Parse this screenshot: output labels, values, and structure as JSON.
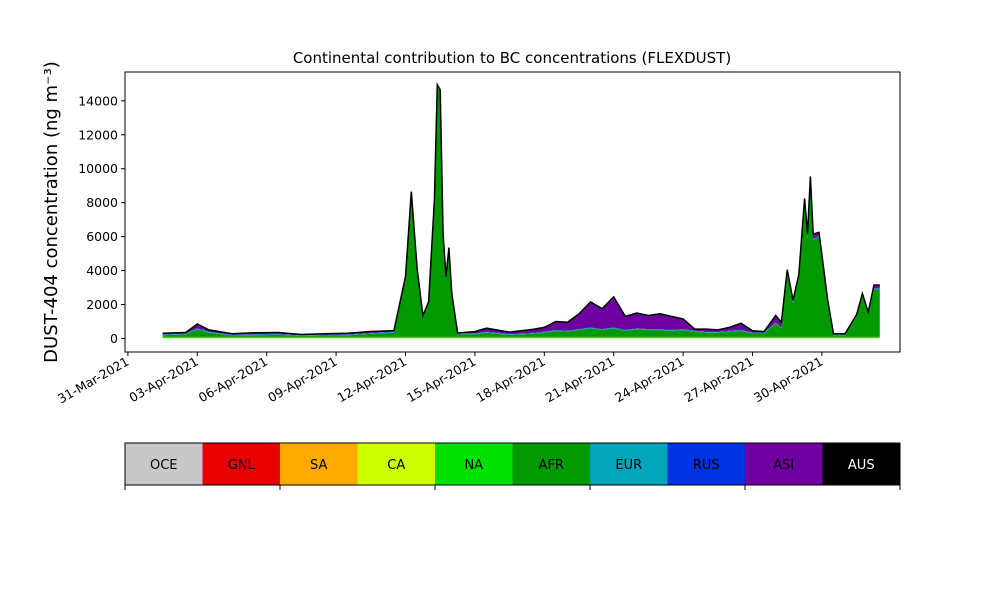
{
  "chart_data": {
    "type": "area",
    "title": "Continental contribution to BC concentrations (FLEXDUST)",
    "ylabel": "DUST-404 concentration (ng m⁻³)",
    "xlabel": "",
    "ylim": [
      -800,
      15700
    ],
    "xlim": [
      "2021-03-30T21:00",
      "2021-05-03T09:00"
    ],
    "yticks": [
      0,
      2000,
      4000,
      6000,
      8000,
      10000,
      12000,
      14000
    ],
    "ytick_labels": [
      "0",
      "2000",
      "4000",
      "6000",
      "8000",
      "10000",
      "12000",
      "14000"
    ],
    "xticks": [
      "2021-03-31",
      "2021-04-03",
      "2021-04-06",
      "2021-04-09",
      "2021-04-12",
      "2021-04-15",
      "2021-04-18",
      "2021-04-21",
      "2021-04-24",
      "2021-04-27",
      "2021-04-30"
    ],
    "xtick_labels": [
      "31-Mar-2021",
      "03-Apr-2021",
      "06-Apr-2021",
      "09-Apr-2021",
      "12-Apr-2021",
      "15-Apr-2021",
      "18-Apr-2021",
      "21-Apr-2021",
      "24-Apr-2021",
      "27-Apr-2021",
      "30-Apr-2021"
    ],
    "grid": false,
    "legend": {
      "placement": "bottom colorbar",
      "entries": [
        {
          "name": "OCE",
          "color": "#c8c8c8",
          "text_color": "#000000"
        },
        {
          "name": "GNL",
          "color": "#e60000",
          "text_color": "#000000"
        },
        {
          "name": "SA",
          "color": "#ffaa00",
          "text_color": "#000000"
        },
        {
          "name": "CA",
          "color": "#ccff00",
          "text_color": "#000000"
        },
        {
          "name": "NA",
          "color": "#00e100",
          "text_color": "#000000"
        },
        {
          "name": "AFR",
          "color": "#009a00",
          "text_color": "#000000"
        },
        {
          "name": "EUR",
          "color": "#00a5b9",
          "text_color": "#000000"
        },
        {
          "name": "RUS",
          "color": "#0032e1",
          "text_color": "#000000"
        },
        {
          "name": "ASI",
          "color": "#6e00a0",
          "text_color": "#000000"
        },
        {
          "name": "AUS",
          "color": "#000000",
          "text_color": "#ffffff"
        }
      ]
    },
    "series": [
      {
        "name": "CA",
        "color": "#ccff00",
        "points": [
          [
            "2021-04-01T12:00",
            30
          ],
          [
            "2021-04-05T00:00",
            30
          ],
          [
            "2021-04-10T00:00",
            30
          ],
          [
            "2021-04-15T00:00",
            30
          ],
          [
            "2021-04-20T00:00",
            30
          ],
          [
            "2021-04-25T00:00",
            30
          ],
          [
            "2021-04-28T00:00",
            30
          ],
          [
            "2021-05-02T12:00",
            30
          ]
        ]
      },
      {
        "name": "NA",
        "color": "#00e100",
        "points": [
          [
            "2021-04-01T12:00",
            60
          ],
          [
            "2021-04-05T00:00",
            60
          ],
          [
            "2021-04-10T00:00",
            60
          ],
          [
            "2021-04-15T00:00",
            60
          ],
          [
            "2021-04-20T00:00",
            60
          ],
          [
            "2021-04-25T00:00",
            60
          ],
          [
            "2021-04-28T00:00",
            60
          ],
          [
            "2021-05-02T12:00",
            60
          ]
        ]
      },
      {
        "name": "AFR",
        "color": "#009a00",
        "points": [
          [
            "2021-04-01T12:00",
            100
          ],
          [
            "2021-04-02T12:00",
            150
          ],
          [
            "2021-04-03T00:00",
            450
          ],
          [
            "2021-04-03T12:00",
            250
          ],
          [
            "2021-04-04T12:00",
            80
          ],
          [
            "2021-04-05T12:00",
            100
          ],
          [
            "2021-04-06T12:00",
            120
          ],
          [
            "2021-04-07T12:00",
            60
          ],
          [
            "2021-04-08T12:00",
            80
          ],
          [
            "2021-04-09T12:00",
            90
          ],
          [
            "2021-04-10T12:00",
            180
          ],
          [
            "2021-04-11T12:00",
            250
          ],
          [
            "2021-04-12T00:00",
            3500
          ],
          [
            "2021-04-12T06:00",
            8500
          ],
          [
            "2021-04-12T12:00",
            4000
          ],
          [
            "2021-04-12T18:00",
            1200
          ],
          [
            "2021-04-13T00:00",
            2000
          ],
          [
            "2021-04-13T06:00",
            8000
          ],
          [
            "2021-04-13T09:00",
            14800
          ],
          [
            "2021-04-13T12:00",
            14500
          ],
          [
            "2021-04-13T15:00",
            6000
          ],
          [
            "2021-04-13T18:00",
            3500
          ],
          [
            "2021-04-13T21:00",
            5200
          ],
          [
            "2021-04-14T00:00",
            2500
          ],
          [
            "2021-04-14T06:00",
            150
          ],
          [
            "2021-04-15T00:00",
            150
          ],
          [
            "2021-04-15T12:00",
            250
          ],
          [
            "2021-04-16T12:00",
            120
          ],
          [
            "2021-04-17T12:00",
            180
          ],
          [
            "2021-04-18T00:00",
            250
          ],
          [
            "2021-04-18T12:00",
            350
          ],
          [
            "2021-04-19T00:00",
            300
          ],
          [
            "2021-04-19T12:00",
            400
          ],
          [
            "2021-04-20T00:00",
            500
          ],
          [
            "2021-04-20T12:00",
            400
          ],
          [
            "2021-04-21T00:00",
            500
          ],
          [
            "2021-04-21T12:00",
            350
          ],
          [
            "2021-04-22T00:00",
            450
          ],
          [
            "2021-04-22T12:00",
            400
          ],
          [
            "2021-04-23T00:00",
            400
          ],
          [
            "2021-04-23T12:00",
            350
          ],
          [
            "2021-04-24T00:00",
            400
          ],
          [
            "2021-04-24T12:00",
            300
          ],
          [
            "2021-04-25T00:00",
            250
          ],
          [
            "2021-04-25T12:00",
            250
          ],
          [
            "2021-04-26T00:00",
            300
          ],
          [
            "2021-04-26T12:00",
            350
          ],
          [
            "2021-04-27T00:00",
            200
          ],
          [
            "2021-04-27T12:00",
            200
          ],
          [
            "2021-04-28T00:00",
            800
          ],
          [
            "2021-04-28T06:00",
            500
          ],
          [
            "2021-04-28T12:00",
            3700
          ],
          [
            "2021-04-28T18:00",
            2000
          ],
          [
            "2021-04-29T00:00",
            3500
          ],
          [
            "2021-04-29T06:00",
            7800
          ],
          [
            "2021-04-29T09:00",
            5800
          ],
          [
            "2021-04-29T12:00",
            9200
          ],
          [
            "2021-04-29T15:00",
            5700
          ],
          [
            "2021-04-29T21:00",
            5900
          ],
          [
            "2021-04-30T06:00",
            2000
          ],
          [
            "2021-04-30T12:00",
            100
          ],
          [
            "2021-05-01T00:00",
            100
          ],
          [
            "2021-05-01T12:00",
            1200
          ],
          [
            "2021-05-01T18:00",
            2400
          ],
          [
            "2021-05-02T00:00",
            1300
          ],
          [
            "2021-05-02T06:00",
            2800
          ],
          [
            "2021-05-02T12:00",
            2800
          ]
        ]
      },
      {
        "name": "EUR",
        "color": "#00a5b9",
        "points": [
          [
            "2021-04-01T12:00",
            40
          ],
          [
            "2021-04-05T00:00",
            40
          ],
          [
            "2021-04-10T00:00",
            40
          ],
          [
            "2021-04-15T00:00",
            40
          ],
          [
            "2021-04-20T00:00",
            40
          ],
          [
            "2021-04-25T00:00",
            40
          ],
          [
            "2021-04-28T00:00",
            40
          ],
          [
            "2021-05-02T12:00",
            40
          ]
        ]
      },
      {
        "name": "RUS",
        "color": "#0032e1",
        "points": [
          [
            "2021-04-01T12:00",
            20
          ],
          [
            "2021-04-05T00:00",
            20
          ],
          [
            "2021-04-10T00:00",
            20
          ],
          [
            "2021-04-15T00:00",
            20
          ],
          [
            "2021-04-20T00:00",
            20
          ],
          [
            "2021-04-25T00:00",
            20
          ],
          [
            "2021-04-28T00:00",
            20
          ],
          [
            "2021-05-02T12:00",
            20
          ]
        ]
      },
      {
        "name": "ASI",
        "color": "#6e00a0",
        "points": [
          [
            "2021-04-01T12:00",
            50
          ],
          [
            "2021-04-02T12:00",
            50
          ],
          [
            "2021-04-03T00:00",
            250
          ],
          [
            "2021-04-03T12:00",
            100
          ],
          [
            "2021-04-04T12:00",
            50
          ],
          [
            "2021-04-05T12:00",
            80
          ],
          [
            "2021-04-06T12:00",
            80
          ],
          [
            "2021-04-07T12:00",
            20
          ],
          [
            "2021-04-08T12:00",
            50
          ],
          [
            "2021-04-09T12:00",
            60
          ],
          [
            "2021-04-10T12:00",
            80
          ],
          [
            "2021-04-11T12:00",
            60
          ],
          [
            "2021-04-12T00:00",
            0
          ],
          [
            "2021-04-12T06:00",
            0
          ],
          [
            "2021-04-12T12:00",
            0
          ],
          [
            "2021-04-12T18:00",
            0
          ],
          [
            "2021-04-13T00:00",
            0
          ],
          [
            "2021-04-13T06:00",
            0
          ],
          [
            "2021-04-13T09:00",
            0
          ],
          [
            "2021-04-13T12:00",
            0
          ],
          [
            "2021-04-13T15:00",
            0
          ],
          [
            "2021-04-13T18:00",
            0
          ],
          [
            "2021-04-13T21:00",
            0
          ],
          [
            "2021-04-14T00:00",
            0
          ],
          [
            "2021-04-14T06:00",
            20
          ],
          [
            "2021-04-15T00:00",
            100
          ],
          [
            "2021-04-15T12:00",
            200
          ],
          [
            "2021-04-16T12:00",
            100
          ],
          [
            "2021-04-17T12:00",
            200
          ],
          [
            "2021-04-18T00:00",
            250
          ],
          [
            "2021-04-18T12:00",
            500
          ],
          [
            "2021-04-19T00:00",
            500
          ],
          [
            "2021-04-19T12:00",
            900
          ],
          [
            "2021-04-20T00:00",
            1500
          ],
          [
            "2021-04-20T12:00",
            1200
          ],
          [
            "2021-04-21T00:00",
            1800
          ],
          [
            "2021-04-21T12:00",
            800
          ],
          [
            "2021-04-22T00:00",
            900
          ],
          [
            "2021-04-22T12:00",
            800
          ],
          [
            "2021-04-23T00:00",
            900
          ],
          [
            "2021-04-23T12:00",
            800
          ],
          [
            "2021-04-24T00:00",
            600
          ],
          [
            "2021-04-24T12:00",
            100
          ],
          [
            "2021-04-25T00:00",
            150
          ],
          [
            "2021-04-25T12:00",
            100
          ],
          [
            "2021-04-26T00:00",
            200
          ],
          [
            "2021-04-26T12:00",
            400
          ],
          [
            "2021-04-27T00:00",
            100
          ],
          [
            "2021-04-27T12:00",
            50
          ],
          [
            "2021-04-28T00:00",
            400
          ],
          [
            "2021-04-28T06:00",
            300
          ],
          [
            "2021-04-28T12:00",
            200
          ],
          [
            "2021-04-28T18:00",
            100
          ],
          [
            "2021-04-29T00:00",
            100
          ],
          [
            "2021-04-29T06:00",
            300
          ],
          [
            "2021-04-29T09:00",
            200
          ],
          [
            "2021-04-29T12:00",
            200
          ],
          [
            "2021-04-29T15:00",
            300
          ],
          [
            "2021-04-29T21:00",
            200
          ],
          [
            "2021-04-30T06:00",
            100
          ],
          [
            "2021-04-30T12:00",
            30
          ],
          [
            "2021-05-01T00:00",
            30
          ],
          [
            "2021-05-01T12:00",
            50
          ],
          [
            "2021-05-01T18:00",
            100
          ],
          [
            "2021-05-02T00:00",
            100
          ],
          [
            "2021-05-02T06:00",
            200
          ],
          [
            "2021-05-02T12:00",
            200
          ]
        ]
      }
    ]
  }
}
